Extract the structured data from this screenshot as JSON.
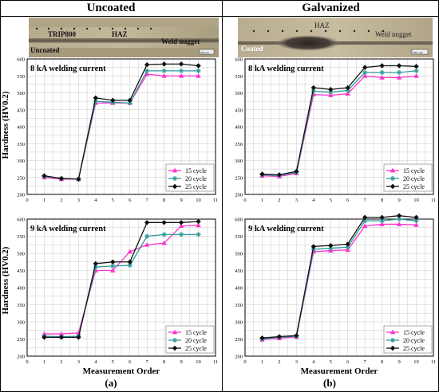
{
  "headers": {
    "left": "Uncoated",
    "right": "Galvanized"
  },
  "micrographs": {
    "left": {
      "labels": [
        "TRIP800",
        "HAZ",
        "Weld nugget",
        "Uncoated"
      ],
      "scale": "200 μm"
    },
    "right": {
      "labels": [
        "HAZ",
        "Weld nugget",
        "Coated"
      ],
      "scale": "2000 μm"
    }
  },
  "colors": {
    "c15": "#ff33cc",
    "c20": "#2e9a9a",
    "c25": "#111111"
  },
  "chart_data": [
    {
      "id": "a-8kA",
      "type": "line",
      "title": "8 kA welding current",
      "ylabel": "Hardness (HV0.2)",
      "xlim": [
        0,
        11
      ],
      "ylim": [
        200,
        600
      ],
      "xticks": [
        "0",
        "1",
        "2",
        "3",
        "4",
        "5",
        "6",
        "7",
        "8",
        "9",
        "10",
        "11"
      ],
      "yticks": [
        "200",
        "250",
        "300",
        "350",
        "400",
        "450",
        "500",
        "550",
        "600"
      ],
      "x": [
        1,
        2,
        3,
        4,
        5,
        6,
        7,
        8,
        9,
        10
      ],
      "legend": "bottom-right",
      "grid": true,
      "series": [
        {
          "name": "15 cycle",
          "values": [
            250,
            245,
            245,
            470,
            470,
            470,
            555,
            550,
            550,
            550
          ]
        },
        {
          "name": "20 cycle",
          "values": [
            253,
            247,
            245,
            475,
            472,
            470,
            565,
            565,
            565,
            565
          ]
        },
        {
          "name": "25 cycle",
          "values": [
            255,
            247,
            245,
            485,
            478,
            478,
            583,
            585,
            585,
            580
          ]
        }
      ]
    },
    {
      "id": "a-9kA",
      "type": "line",
      "title": "9 kA welding current",
      "ylabel": "Hardness (HV0.2)",
      "xlabel": "Measurement Order",
      "xlim": [
        0,
        11
      ],
      "ylim": [
        200,
        600
      ],
      "xticks": [
        "0",
        "1",
        "2",
        "3",
        "4",
        "5",
        "6",
        "7",
        "8",
        "9",
        "10",
        "11"
      ],
      "yticks": [
        "200",
        "250",
        "300",
        "350",
        "400",
        "450",
        "500",
        "550",
        "600"
      ],
      "x": [
        1,
        2,
        3,
        4,
        5,
        6,
        7,
        8,
        9,
        10
      ],
      "legend": "bottom-right",
      "grid": true,
      "series": [
        {
          "name": "15 cycle",
          "values": [
            265,
            265,
            268,
            450,
            450,
            505,
            525,
            530,
            580,
            582
          ]
        },
        {
          "name": "20 cycle",
          "values": [
            258,
            257,
            258,
            460,
            463,
            465,
            550,
            555,
            555,
            555
          ]
        },
        {
          "name": "25 cycle",
          "values": [
            255,
            255,
            255,
            470,
            475,
            475,
            590,
            590,
            590,
            593
          ]
        }
      ]
    },
    {
      "id": "b-8kA",
      "type": "line",
      "title": "8 kA welding current",
      "xlim": [
        0,
        11
      ],
      "ylim": [
        200,
        600
      ],
      "xticks": [
        "0",
        "1",
        "2",
        "3",
        "4",
        "5",
        "6",
        "7",
        "8",
        "9",
        "10",
        "11"
      ],
      "yticks": [
        "200",
        "250",
        "300",
        "350",
        "400",
        "450",
        "500",
        "550",
        "600"
      ],
      "x": [
        1,
        2,
        3,
        4,
        5,
        6,
        7,
        8,
        9,
        10
      ],
      "legend": "bottom-right",
      "grid": true,
      "series": [
        {
          "name": "15 cycle",
          "values": [
            255,
            253,
            262,
            495,
            493,
            497,
            550,
            545,
            545,
            550
          ]
        },
        {
          "name": "20 cycle",
          "values": [
            258,
            256,
            265,
            505,
            502,
            507,
            560,
            560,
            560,
            565
          ]
        },
        {
          "name": "25 cycle",
          "values": [
            260,
            258,
            268,
            515,
            510,
            515,
            575,
            580,
            580,
            578
          ]
        }
      ]
    },
    {
      "id": "b-9kA",
      "type": "line",
      "title": "9 kA welding current",
      "xlabel": "Measurement Order",
      "xlim": [
        0,
        11
      ],
      "ylim": [
        200,
        600
      ],
      "xticks": [
        "0",
        "1",
        "2",
        "3",
        "4",
        "5",
        "6",
        "7",
        "8",
        "9",
        "10",
        "11"
      ],
      "yticks": [
        "200",
        "250",
        "300",
        "350",
        "400",
        "450",
        "500",
        "550",
        "600"
      ],
      "x": [
        1,
        2,
        3,
        4,
        5,
        6,
        7,
        8,
        9,
        10
      ],
      "legend": "bottom-right",
      "grid": true,
      "series": [
        {
          "name": "15 cycle",
          "values": [
            248,
            252,
            256,
            505,
            508,
            510,
            580,
            585,
            585,
            583
          ]
        },
        {
          "name": "20 cycle",
          "values": [
            250,
            255,
            258,
            512,
            515,
            518,
            595,
            595,
            600,
            595
          ]
        },
        {
          "name": "25 cycle",
          "values": [
            253,
            257,
            260,
            520,
            523,
            527,
            605,
            605,
            610,
            605
          ]
        }
      ]
    }
  ],
  "panel_labels": [
    "(a)",
    "(b)"
  ]
}
